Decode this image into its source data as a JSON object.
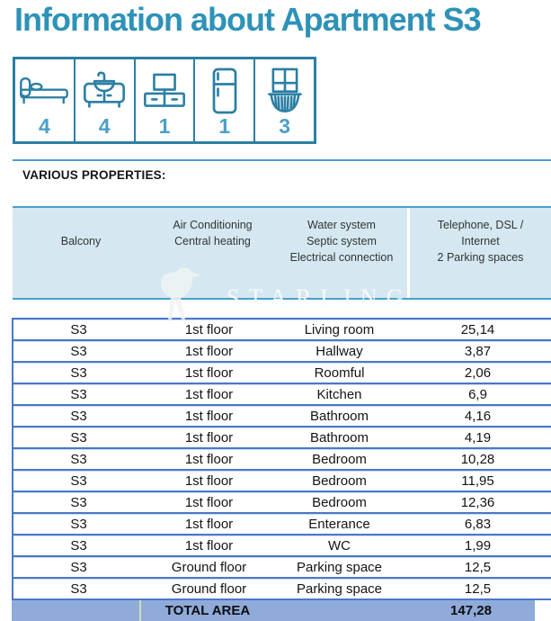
{
  "title": "Information about Apartment S3",
  "amenities": {
    "items": [
      {
        "icon": "bed-icon",
        "count": "4"
      },
      {
        "icon": "bathroom-vanity-icon",
        "count": "4"
      },
      {
        "icon": "tv-stand-icon",
        "count": "1"
      },
      {
        "icon": "refrigerator-icon",
        "count": "1"
      },
      {
        "icon": "balcony-icon",
        "count": "3"
      }
    ]
  },
  "section": {
    "heading": "VARIOUS PROPERTIES:"
  },
  "properties_header": {
    "columns": [
      {
        "lines": [
          "Balcony"
        ]
      },
      {
        "lines": [
          "Air Conditioning",
          "Central heating"
        ]
      },
      {
        "lines": [
          "Water system",
          "Septic system",
          "Electrical connection"
        ]
      },
      {
        "lines": [
          "Telephone, DSL /",
          "Internet",
          "2 Parking spaces"
        ]
      }
    ]
  },
  "watermark": {
    "text": "STARLING"
  },
  "table": {
    "rows": [
      {
        "unit": "S3",
        "floor": "1st floor",
        "room": "Living room",
        "area": "25,14"
      },
      {
        "unit": "S3",
        "floor": "1st floor",
        "room": "Hallway",
        "area": "3,87"
      },
      {
        "unit": "S3",
        "floor": "1st floor",
        "room": "Roomful",
        "area": "2,06"
      },
      {
        "unit": "S3",
        "floor": "1st floor",
        "room": "Kitchen",
        "area": "6,9"
      },
      {
        "unit": "S3",
        "floor": "1st floor",
        "room": "Bathroom",
        "area": "4,16"
      },
      {
        "unit": "S3",
        "floor": "1st floor",
        "room": "Bathroom",
        "area": "4,19"
      },
      {
        "unit": "S3",
        "floor": "1st floor",
        "room": "Bedroom",
        "area": "10,28"
      },
      {
        "unit": "S3",
        "floor": "1st floor",
        "room": "Bedroom",
        "area": "11,95"
      },
      {
        "unit": "S3",
        "floor": "1st floor",
        "room": "Bedroom",
        "area": "12,36"
      },
      {
        "unit": "S3",
        "floor": "1st floor",
        "room": "Enterance",
        "area": "6,83"
      },
      {
        "unit": "S3",
        "floor": "1st floor",
        "room": "WC",
        "area": "1,99"
      },
      {
        "unit": "S3",
        "floor": "Ground floor",
        "room": "Parking space",
        "area": "12,5"
      },
      {
        "unit": "S3",
        "floor": "Ground floor",
        "room": "Parking space",
        "area": "12,5"
      }
    ],
    "total": {
      "label": "TOTAL AREA",
      "value": "147,28"
    }
  },
  "colors": {
    "title_teal": "#2e92b8",
    "icon_teal": "#2b7fa4",
    "count_blue": "#4aa0c8",
    "rule_blue": "#4c9ecf",
    "props_bg": "#d5e8f1",
    "props_border": "#49a0cd",
    "table_border": "#4a78c8",
    "total_bg": "#90aada",
    "total_divider": "#cfe0b4"
  }
}
